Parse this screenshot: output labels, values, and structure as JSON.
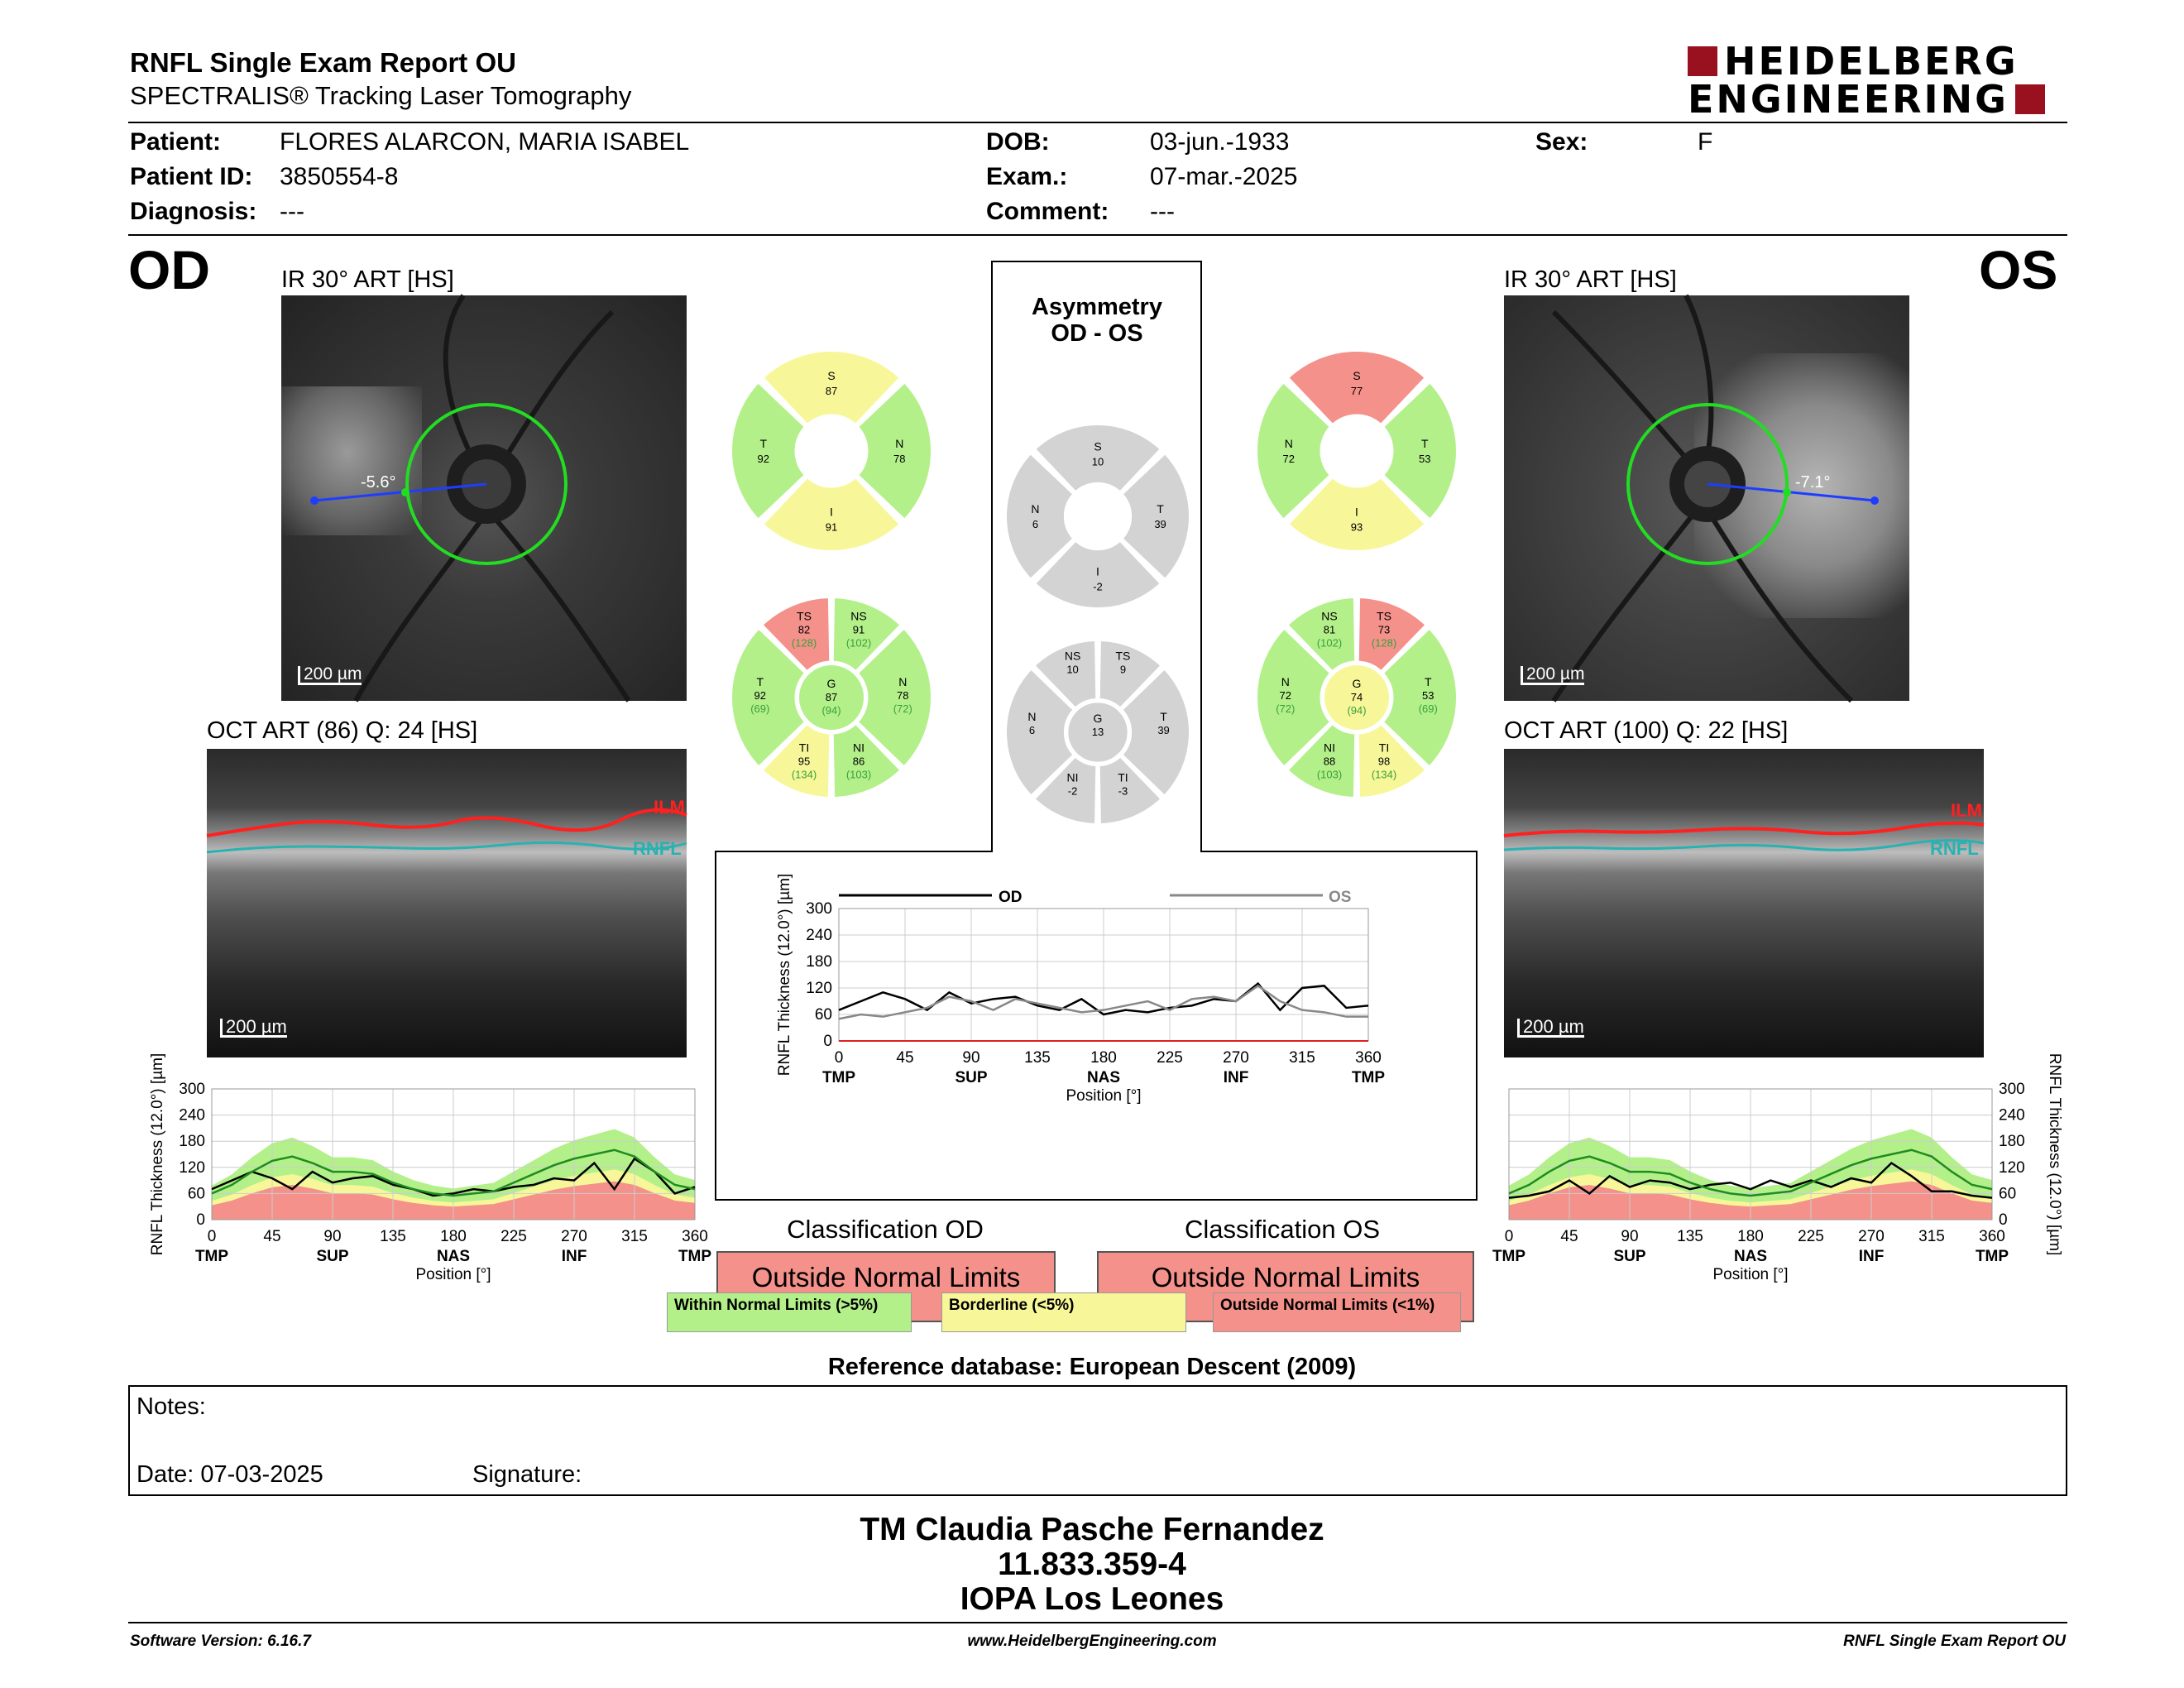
{
  "header": {
    "title": "RNFL Single Exam Report OU",
    "subtitle": "SPECTRALIS® Tracking Laser Tomography",
    "logo_line1": "HEIDELBERG",
    "logo_line2": "ENGINEERING"
  },
  "patient": {
    "patient_label": "Patient:",
    "patient_value": "FLORES ALARCON, MARIA ISABEL",
    "id_label": "Patient ID:",
    "id_value": "3850554-8",
    "diagnosis_label": "Diagnosis:",
    "diagnosis_value": "---",
    "dob_label": "DOB:",
    "dob_value": "03-jun.-1933",
    "exam_label": "Exam.:",
    "exam_value": "07-mar.-2025",
    "comment_label": "Comment:",
    "comment_value": "---",
    "sex_label": "Sex:",
    "sex_value": "F"
  },
  "od": {
    "eye": "OD",
    "ir_caption": "IR 30° ART [HS]",
    "ir_scale": "200 µm",
    "ir_angle": "-5.6°",
    "oct_caption": "OCT ART (86) Q: 24 [HS]",
    "oct_scale": "200 µm",
    "ilm": "ILM",
    "rnfl": "RNFL",
    "sectors4": {
      "S": "87",
      "T": "92",
      "N": "78",
      "I": "91"
    },
    "sectors6": {
      "TS": [
        "82",
        "(128)"
      ],
      "NS": [
        "91",
        "(102)"
      ],
      "T": [
        "92",
        "(69)"
      ],
      "G": [
        "87",
        "(94)"
      ],
      "N": [
        "78",
        "(72)"
      ],
      "TI": [
        "95",
        "(134)"
      ],
      "NI": [
        "86",
        "(103)"
      ]
    },
    "classification_title": "Classification OD",
    "classification": "Outside Normal Limits"
  },
  "os": {
    "eye": "OS",
    "ir_caption": "IR 30° ART [HS]",
    "ir_scale": "200 µm",
    "ir_angle": "-7.1°",
    "oct_caption": "OCT ART (100) Q: 22 [HS]",
    "oct_scale": "200 µm",
    "ilm": "ILM",
    "rnfl": "RNFL",
    "sectors4": {
      "S": "77",
      "N": "72",
      "T": "53",
      "I": "93"
    },
    "sectors6": {
      "NS": [
        "81",
        "(102)"
      ],
      "TS": [
        "73",
        "(128)"
      ],
      "N": [
        "72",
        "(72)"
      ],
      "G": [
        "74",
        "(94)"
      ],
      "T": [
        "53",
        "(69)"
      ],
      "NI": [
        "88",
        "(103)"
      ],
      "TI": [
        "98",
        "(134)"
      ]
    },
    "classification_title": "Classification OS",
    "classification": "Outside Normal Limits"
  },
  "asymmetry": {
    "title1": "Asymmetry",
    "title2": "OD - OS",
    "sectors4": {
      "S": "10",
      "N": "6",
      "T": "39",
      "I": "-2"
    },
    "sectors6": {
      "NS": "10",
      "TS": "9",
      "N": "6",
      "G": "13",
      "T": "39",
      "NI": "-2",
      "TI": "-3"
    }
  },
  "sector_letters": {
    "S": "S",
    "T": "T",
    "N": "N",
    "I": "I",
    "G": "G",
    "TS": "TS",
    "NS": "NS",
    "TI": "TI",
    "NI": "NI"
  },
  "chart_data": [
    {
      "type": "line",
      "name": "od_profile",
      "ylabel": "RNFL Thickness (12.0°) [µm]",
      "xlabel": "Position [°]",
      "ylim": [
        0,
        300
      ],
      "yticks": [
        "0",
        "60",
        "120",
        "180",
        "240",
        "300"
      ],
      "xticks": [
        "0",
        "45",
        "90",
        "135",
        "180",
        "225",
        "270",
        "315",
        "360"
      ],
      "xregions": [
        "TMP",
        "SUP",
        "NAS",
        "INF",
        "TMP"
      ],
      "x": [
        0,
        15,
        30,
        45,
        60,
        75,
        90,
        105,
        120,
        135,
        150,
        165,
        180,
        195,
        210,
        225,
        240,
        255,
        270,
        285,
        300,
        315,
        330,
        345,
        360
      ],
      "series": [
        {
          "values": [
            70,
            90,
            110,
            95,
            70,
            110,
            85,
            95,
            100,
            80,
            70,
            55,
            60,
            70,
            65,
            75,
            80,
            95,
            90,
            130,
            70,
            140,
            110,
            60,
            75
          ]
        },
        {
          "values": [
            60,
            80,
            110,
            135,
            145,
            130,
            110,
            110,
            105,
            85,
            70,
            60,
            55,
            60,
            65,
            85,
            105,
            125,
            140,
            150,
            160,
            145,
            110,
            80,
            70
          ]
        }
      ]
    },
    {
      "type": "line",
      "name": "ou_comparison",
      "ylabel": "RNFL Thickness (12.0°) [µm]",
      "xlabel": "Position [°]",
      "ylim": [
        0,
        300
      ],
      "yticks": [
        "0",
        "60",
        "120",
        "180",
        "240",
        "300"
      ],
      "xticks": [
        "0",
        "45",
        "90",
        "135",
        "180",
        "225",
        "270",
        "315",
        "360"
      ],
      "xregions": [
        "TMP",
        "SUP",
        "NAS",
        "INF",
        "TMP"
      ],
      "x": [
        0,
        15,
        30,
        45,
        60,
        75,
        90,
        105,
        120,
        135,
        150,
        165,
        180,
        195,
        210,
        225,
        240,
        255,
        270,
        285,
        300,
        315,
        330,
        345,
        360
      ],
      "series": [
        {
          "name": "OD",
          "values": [
            70,
            90,
            110,
            95,
            70,
            110,
            85,
            95,
            100,
            80,
            70,
            95,
            60,
            70,
            65,
            75,
            80,
            95,
            90,
            130,
            70,
            120,
            125,
            75,
            80
          ]
        },
        {
          "name": "OS",
          "values": [
            50,
            60,
            55,
            65,
            75,
            100,
            90,
            70,
            95,
            85,
            75,
            65,
            70,
            80,
            90,
            70,
            95,
            100,
            90,
            125,
            90,
            70,
            65,
            55,
            55
          ]
        }
      ]
    },
    {
      "type": "line",
      "name": "os_profile",
      "ylabel": "RNFL Thickness (12.0°) [µm]",
      "xlabel": "Position [°]",
      "ylim": [
        0,
        300
      ],
      "yticks": [
        "0",
        "60",
        "120",
        "180",
        "240",
        "300"
      ],
      "xticks": [
        "0",
        "45",
        "90",
        "135",
        "180",
        "225",
        "270",
        "315",
        "360"
      ],
      "xregions": [
        "TMP",
        "SUP",
        "NAS",
        "INF",
        "TMP"
      ],
      "x": [
        0,
        15,
        30,
        45,
        60,
        75,
        90,
        105,
        120,
        135,
        150,
        165,
        180,
        195,
        210,
        225,
        240,
        255,
        270,
        285,
        300,
        315,
        330,
        345,
        360
      ],
      "series": [
        {
          "values": [
            50,
            55,
            65,
            90,
            60,
            100,
            75,
            90,
            85,
            70,
            80,
            85,
            70,
            90,
            75,
            90,
            75,
            95,
            85,
            130,
            100,
            65,
            65,
            55,
            50
          ]
        },
        {
          "values": [
            60,
            80,
            110,
            135,
            145,
            130,
            110,
            110,
            105,
            85,
            70,
            60,
            55,
            60,
            65,
            85,
            105,
            125,
            140,
            150,
            160,
            145,
            110,
            80,
            70
          ]
        }
      ]
    }
  ],
  "legend": {
    "within": "Within Normal Limits (>5%)",
    "borderline": "Borderline (<5%)",
    "outside": "Outside Normal Limits (<1%)",
    "od_label": "OD",
    "os_label": "OS"
  },
  "reference": "Reference database: European Descent (2009)",
  "notes": {
    "label": "Notes:",
    "date": "Date: 07-03-2025",
    "signature": "Signature:"
  },
  "signoff": {
    "name": "TM Claudia Pasche Fernandez",
    "id": "11.833.359-4",
    "org": "IOPA Los Leones"
  },
  "footer": {
    "version": "Software Version: 6.16.7",
    "url": "www.HeidelbergEngineering.com",
    "report": "RNFL Single Exam Report OU"
  },
  "colors": {
    "green": "#b3f08a",
    "yellow": "#f7f79a",
    "red": "#f4918a",
    "gray": "#d3d3d3",
    "logo": "#99111e"
  }
}
